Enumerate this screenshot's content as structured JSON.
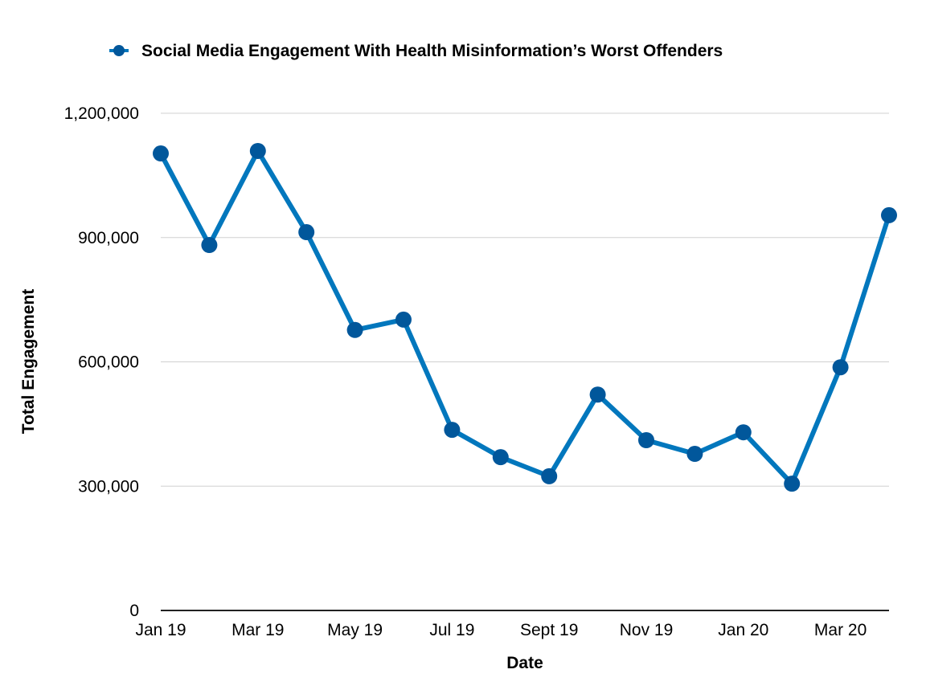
{
  "chart_data": {
    "type": "line",
    "title": "",
    "legend": {
      "position": "top",
      "entries": [
        "Social Media Engagement With Health Misinformation’s Worst Offenders"
      ]
    },
    "xlabel": "Date",
    "ylabel": "Total Engagement",
    "ylim": [
      0,
      1200000
    ],
    "yticks": [
      0,
      300000,
      600000,
      900000,
      1200000
    ],
    "ytick_labels": [
      "0",
      "300,000",
      "600,000",
      "900,000",
      "1,200,000"
    ],
    "grid": true,
    "x": [
      "Jan 19",
      "Feb 19",
      "Mar 19",
      "Apr 19",
      "May 19",
      "Jun 19",
      "Jul 19",
      "Aug 19",
      "Sept 19",
      "Oct 19",
      "Nov 19",
      "Dec 19",
      "Jan 20",
      "Feb 20",
      "Mar 20",
      "Apr 20"
    ],
    "xtick_labels": [
      "Jan 19",
      "",
      "Mar 19",
      "",
      "May 19",
      "",
      "Jul 19",
      "",
      "Sept 19",
      "",
      "Nov 19",
      "",
      "Jan 20",
      "",
      "Mar 20",
      ""
    ],
    "series": [
      {
        "name": "Social Media Engagement With Health Misinformation’s Worst Offenders",
        "color": "#0277bd",
        "marker_color": "#01579b",
        "values": [
          1103000,
          882000,
          1109000,
          913000,
          677000,
          702000,
          436000,
          370000,
          324000,
          521000,
          411000,
          378000,
          430000,
          306000,
          587000,
          954000
        ]
      }
    ]
  }
}
